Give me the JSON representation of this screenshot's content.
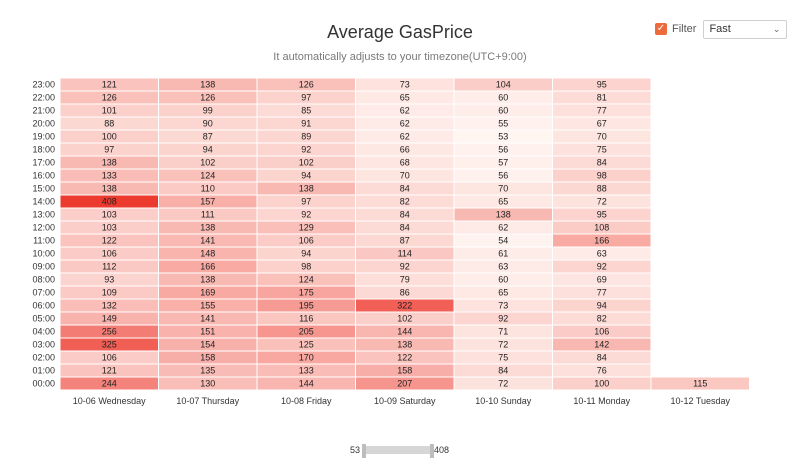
{
  "header": {
    "title": "Average GasPrice",
    "subtitle": "It automatically adjusts to your timezone(UTC+9:00)"
  },
  "filter": {
    "checked": true,
    "label": "Filter",
    "selected": "Fast",
    "accent_color": "#ed6a3b"
  },
  "chart_data": {
    "type": "heatmap",
    "title": "Average GasPrice",
    "subtitle": "It automatically adjusts to your timezone(UTC+9:00)",
    "x_categories": [
      "10-06 Wednesday",
      "10-07 Thursday",
      "10-08 Friday",
      "10-09 Saturday",
      "10-10 Sunday",
      "10-11 Monday",
      "10-12 Tuesday"
    ],
    "y_categories": [
      "00:00",
      "01:00",
      "02:00",
      "03:00",
      "04:00",
      "05:00",
      "06:00",
      "07:00",
      "08:00",
      "09:00",
      "10:00",
      "11:00",
      "12:00",
      "13:00",
      "14:00",
      "15:00",
      "16:00",
      "17:00",
      "18:00",
      "19:00",
      "20:00",
      "21:00",
      "22:00",
      "23:00"
    ],
    "values": [
      [
        244,
        121,
        106,
        325,
        256,
        149,
        132,
        109,
        93,
        112,
        106,
        122,
        103,
        103,
        408,
        138,
        133,
        138,
        97,
        100,
        88,
        101,
        126,
        121
      ],
      [
        130,
        135,
        158,
        154,
        151,
        141,
        155,
        169,
        138,
        166,
        148,
        141,
        138,
        111,
        157,
        110,
        124,
        102,
        94,
        87,
        90,
        99,
        126,
        138
      ],
      [
        144,
        133,
        170,
        125,
        205,
        116,
        195,
        175,
        124,
        98,
        94,
        106,
        129,
        92,
        97,
        138,
        94,
        102,
        92,
        89,
        91,
        85,
        97,
        126
      ],
      [
        207,
        158,
        122,
        138,
        144,
        102,
        322,
        86,
        79,
        92,
        114,
        87,
        84,
        84,
        82,
        84,
        70,
        68,
        66,
        62,
        62,
        62,
        65,
        73
      ],
      [
        72,
        84,
        75,
        72,
        71,
        92,
        73,
        65,
        60,
        63,
        61,
        54,
        62,
        138,
        65,
        70,
        56,
        57,
        56,
        53,
        55,
        60,
        60,
        104
      ],
      [
        100,
        76,
        84,
        142,
        106,
        82,
        94,
        77,
        69,
        92,
        63,
        166,
        108,
        95,
        72,
        88,
        98,
        84,
        75,
        70,
        67,
        77,
        81,
        95
      ],
      [
        115
      ]
    ],
    "visual_map": {
      "min": 53,
      "max": 408,
      "min_label": "53",
      "max_label": "408",
      "color_low": "#fff5f1",
      "color_high": "#ed3a2f"
    }
  }
}
